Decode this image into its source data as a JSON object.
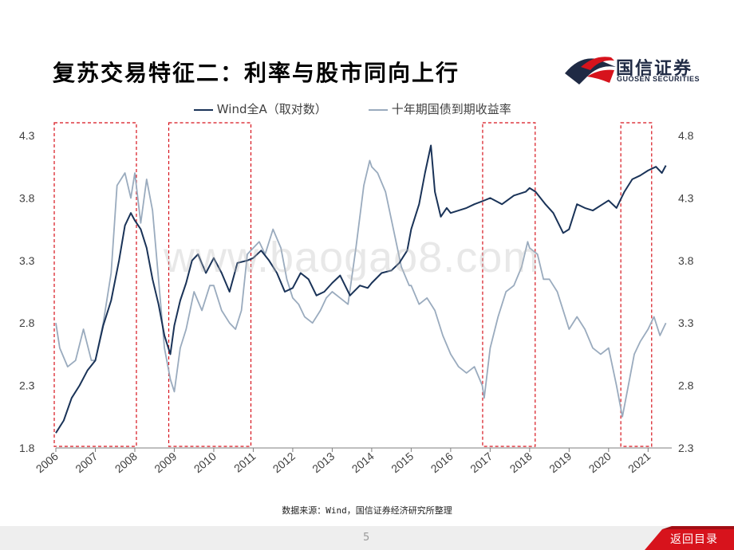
{
  "slide": {
    "title": "复苏交易特征二：利率与股市同向上行",
    "logo_cn": "国信证券",
    "logo_en": "GUOSEN SECURITIES",
    "source": "数据来源：Wind，国信证券经济研究所整理",
    "page_number": "5",
    "back_label": "返回目录",
    "watermark": "www.baogao8.com",
    "colors": {
      "brand_red": "#d7131c",
      "brand_navy": "#1f2a44",
      "wind_series": "#1a3358",
      "bond_series": "#9aabbe",
      "highlight_box": "#d7131c"
    }
  },
  "chart_data": {
    "type": "line",
    "title": "",
    "legend": [
      "Wind全A（取对数）",
      "十年期国债到期收益率"
    ],
    "xlabel": "",
    "x_ticks": [
      "2006",
      "2007",
      "2008",
      "2009",
      "2010",
      "2011",
      "2012",
      "2013",
      "2014",
      "2015",
      "2016",
      "2017",
      "2018",
      "2019",
      "2020",
      "2021"
    ],
    "x_range": [
      2006.0,
      2021.6
    ],
    "y_left": {
      "ticks": [
        "1.8",
        "2.3",
        "2.8",
        "3.3",
        "3.8",
        "4.3"
      ],
      "range": [
        1.8,
        4.3
      ]
    },
    "y_right": {
      "ticks": [
        "2.3",
        "2.8",
        "3.3",
        "3.8",
        "4.3",
        "4.8"
      ],
      "range": [
        2.3,
        4.8
      ]
    },
    "highlight_periods": [
      [
        2006.0,
        2008.0
      ],
      [
        2008.9,
        2010.9
      ],
      [
        2016.85,
        2018.1
      ],
      [
        2020.35,
        2021.05
      ]
    ],
    "series": [
      {
        "name": "Wind全A（取对数）",
        "axis": "left",
        "x": [
          2006.0,
          2006.2,
          2006.4,
          2006.6,
          2006.8,
          2007.0,
          2007.2,
          2007.4,
          2007.6,
          2007.75,
          2007.9,
          2008.0,
          2008.15,
          2008.3,
          2008.45,
          2008.6,
          2008.75,
          2008.9,
          2009.0,
          2009.15,
          2009.3,
          2009.45,
          2009.6,
          2009.8,
          2010.0,
          2010.2,
          2010.4,
          2010.6,
          2010.85,
          2011.0,
          2011.2,
          2011.4,
          2011.6,
          2011.8,
          2012.0,
          2012.2,
          2012.4,
          2012.6,
          2012.8,
          2013.0,
          2013.2,
          2013.45,
          2013.7,
          2013.9,
          2014.0,
          2014.25,
          2014.5,
          2014.7,
          2014.9,
          2015.0,
          2015.2,
          2015.35,
          2015.5,
          2015.6,
          2015.75,
          2015.9,
          2016.0,
          2016.2,
          2016.4,
          2016.6,
          2016.85,
          2017.0,
          2017.3,
          2017.6,
          2017.9,
          2018.0,
          2018.15,
          2018.4,
          2018.6,
          2018.85,
          2019.0,
          2019.2,
          2019.4,
          2019.6,
          2019.85,
          2020.0,
          2020.2,
          2020.4,
          2020.6,
          2020.8,
          2021.0,
          2021.2,
          2021.35,
          2021.45
        ],
        "y": [
          1.92,
          2.02,
          2.2,
          2.3,
          2.42,
          2.5,
          2.78,
          2.98,
          3.3,
          3.58,
          3.68,
          3.62,
          3.55,
          3.4,
          3.15,
          2.95,
          2.7,
          2.55,
          2.78,
          2.98,
          3.12,
          3.3,
          3.35,
          3.2,
          3.32,
          3.2,
          3.05,
          3.28,
          3.3,
          3.32,
          3.38,
          3.3,
          3.2,
          3.05,
          3.08,
          3.2,
          3.15,
          3.02,
          3.05,
          3.12,
          3.18,
          3.02,
          3.1,
          3.08,
          3.12,
          3.2,
          3.22,
          3.28,
          3.38,
          3.55,
          3.75,
          4.0,
          4.22,
          3.85,
          3.65,
          3.72,
          3.68,
          3.7,
          3.72,
          3.75,
          3.78,
          3.8,
          3.75,
          3.82,
          3.85,
          3.88,
          3.85,
          3.75,
          3.68,
          3.52,
          3.55,
          3.75,
          3.72,
          3.7,
          3.75,
          3.78,
          3.72,
          3.85,
          3.95,
          3.98,
          4.02,
          4.05,
          4.0,
          4.06
        ]
      },
      {
        "name": "十年期国债到期收益率",
        "axis": "right",
        "x": [
          2006.0,
          2006.1,
          2006.3,
          2006.5,
          2006.7,
          2006.9,
          2007.0,
          2007.2,
          2007.4,
          2007.55,
          2007.75,
          2007.9,
          2008.0,
          2008.15,
          2008.3,
          2008.45,
          2008.6,
          2008.75,
          2008.9,
          2009.0,
          2009.15,
          2009.3,
          2009.5,
          2009.7,
          2009.9,
          2010.0,
          2010.2,
          2010.4,
          2010.55,
          2010.7,
          2010.85,
          2011.0,
          2011.15,
          2011.3,
          2011.5,
          2011.7,
          2011.85,
          2012.0,
          2012.15,
          2012.3,
          2012.5,
          2012.7,
          2012.85,
          2013.0,
          2013.2,
          2013.4,
          2013.6,
          2013.8,
          2013.95,
          2014.0,
          2014.15,
          2014.35,
          2014.55,
          2014.75,
          2014.95,
          2015.0,
          2015.2,
          2015.4,
          2015.6,
          2015.8,
          2016.0,
          2016.2,
          2016.4,
          2016.6,
          2016.8,
          2016.85,
          2017.0,
          2017.2,
          2017.4,
          2017.6,
          2017.8,
          2017.95,
          2018.0,
          2018.2,
          2018.35,
          2018.5,
          2018.7,
          2018.9,
          2019.0,
          2019.2,
          2019.4,
          2019.6,
          2019.8,
          2020.0,
          2020.2,
          2020.35,
          2020.5,
          2020.65,
          2020.8,
          2021.0,
          2021.15,
          2021.3,
          2021.45
        ],
        "y": [
          3.3,
          3.1,
          2.95,
          3.0,
          3.25,
          3.0,
          3.0,
          3.3,
          3.7,
          4.4,
          4.5,
          4.3,
          4.5,
          4.1,
          4.45,
          4.2,
          3.65,
          3.1,
          2.85,
          2.75,
          3.1,
          3.25,
          3.55,
          3.4,
          3.6,
          3.6,
          3.4,
          3.3,
          3.25,
          3.4,
          3.85,
          3.9,
          3.95,
          3.85,
          4.05,
          3.9,
          3.65,
          3.5,
          3.45,
          3.35,
          3.3,
          3.4,
          3.5,
          3.55,
          3.5,
          3.45,
          3.9,
          4.4,
          4.6,
          4.55,
          4.5,
          4.35,
          4.05,
          3.75,
          3.6,
          3.6,
          3.45,
          3.5,
          3.4,
          3.2,
          3.05,
          2.95,
          2.9,
          2.95,
          2.8,
          2.7,
          3.1,
          3.35,
          3.55,
          3.6,
          3.75,
          3.95,
          3.9,
          3.85,
          3.65,
          3.65,
          3.55,
          3.35,
          3.25,
          3.35,
          3.25,
          3.1,
          3.05,
          3.1,
          2.8,
          2.55,
          2.8,
          3.05,
          3.15,
          3.25,
          3.35,
          3.2,
          3.3
        ]
      }
    ]
  }
}
